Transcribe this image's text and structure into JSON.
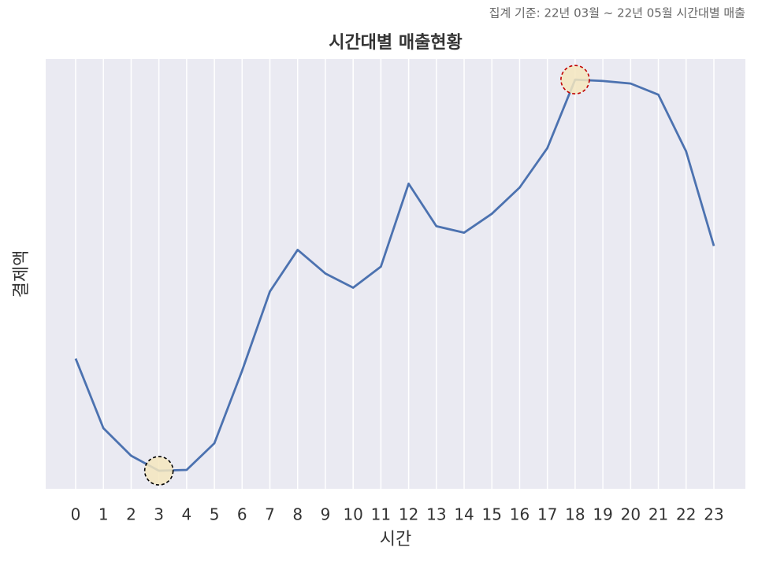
{
  "chart_data": {
    "type": "line",
    "title": "시간대별 매출현황",
    "subtitle": "집계 기준: 22년 03월 ~ 22년 05월 시간대별 매출",
    "x_label": "시간",
    "y_label": "결제액",
    "categories": [
      "0",
      "1",
      "2",
      "3",
      "4",
      "5",
      "6",
      "7",
      "8",
      "9",
      "10",
      "11",
      "12",
      "13",
      "14",
      "15",
      "16",
      "17",
      "18",
      "19",
      "20",
      "21",
      "22",
      "23"
    ],
    "series": [
      {
        "name": "결제액",
        "color": "#4c72b0",
        "values": [
          30.3,
          14.1,
          7.7,
          4.2,
          4.4,
          10.6,
          27.5,
          45.9,
          55.6,
          50.1,
          46.8,
          51.7,
          71.0,
          61.1,
          59.6,
          64.0,
          70.1,
          79.3,
          95.2,
          94.9,
          94.3,
          91.7,
          78.5,
          56.5
        ]
      }
    ],
    "ylim": [
      0,
      100
    ],
    "grid": true,
    "background": "#eaeaf2",
    "highlights": [
      {
        "index": 3,
        "color": "#000000"
      },
      {
        "index": 18,
        "color": "#c00000"
      }
    ]
  }
}
